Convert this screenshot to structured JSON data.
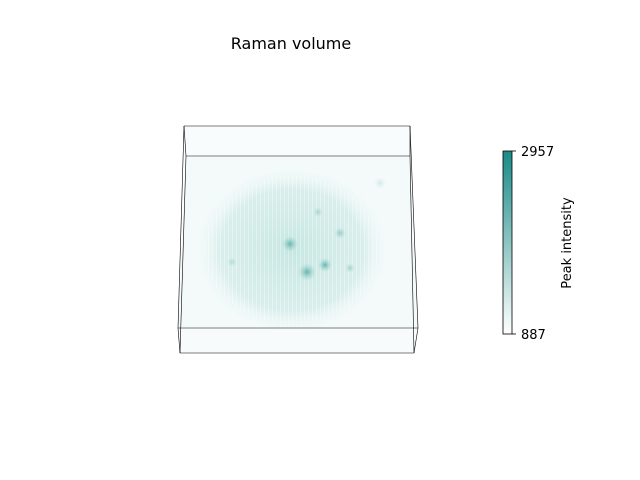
{
  "chart_data": {
    "type": "heatmap",
    "title": "Raman volume",
    "colorbar": {
      "label": "Peak intensity",
      "min": 887,
      "max": 2957,
      "tick_labels": [
        "2957",
        "887"
      ],
      "colormap": [
        "#ffffff",
        "#1a8a86"
      ]
    },
    "volume": {
      "shape": "flattened ellipsoidal cell body seen in 3D box projection",
      "background_intensity": 900,
      "body_intensity": 1250,
      "features": [
        {
          "name": "nucleolus-spot",
          "intensity": 1900
        },
        {
          "name": "nucleolus-spot",
          "intensity": 2000
        },
        {
          "name": "nucleolus-spot",
          "intensity": 1800
        },
        {
          "name": "edge-spot",
          "intensity": 1400
        },
        {
          "name": "edge-spot",
          "intensity": 1350
        }
      ]
    },
    "grid": false,
    "legend": "colorbar-right"
  },
  "colors": {
    "box_line": "#000000",
    "accent": "#1a8a86"
  }
}
